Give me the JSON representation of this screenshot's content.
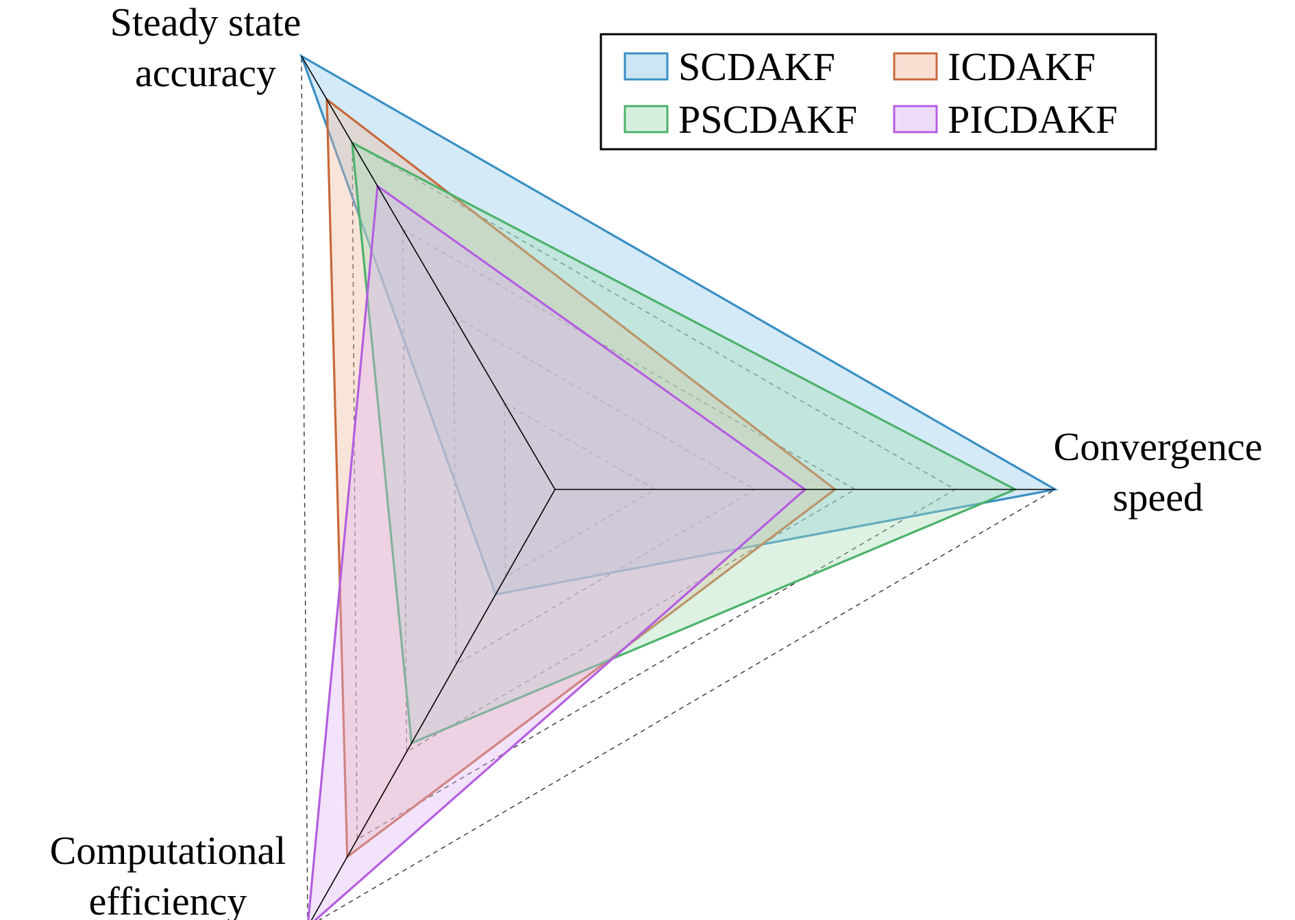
{
  "chart_data": {
    "type": "radar",
    "title": "",
    "axes": [
      {
        "key": "accuracy",
        "label_lines": [
          "Steady state",
          "accuracy"
        ]
      },
      {
        "key": "speed",
        "label_lines": [
          "Convergence",
          "speed"
        ]
      },
      {
        "key": "efficiency",
        "label_lines": [
          "Computational",
          "efficiency"
        ]
      }
    ],
    "rmax": 5,
    "grid_levels": [
      1,
      2,
      3,
      4,
      5
    ],
    "grid": true,
    "legend_position": "top-right",
    "series": [
      {
        "name": "SCDAKF",
        "color": "#3a8fc4",
        "fill": "#8ec8e8",
        "values": [
          5,
          5,
          1.2
        ]
      },
      {
        "name": "ICDAKF",
        "color": "#c8683a",
        "fill": "#efb79b",
        "values": [
          4.5,
          2.8,
          4.2
        ]
      },
      {
        "name": "PSCDAKF",
        "color": "#4cb26a",
        "fill": "#a6dcb5",
        "values": [
          4.0,
          4.6,
          2.9
        ]
      },
      {
        "name": "PICDAKF",
        "color": "#b45ee0",
        "fill": "#dcb2f1",
        "values": [
          3.5,
          2.5,
          5.0
        ]
      }
    ]
  }
}
